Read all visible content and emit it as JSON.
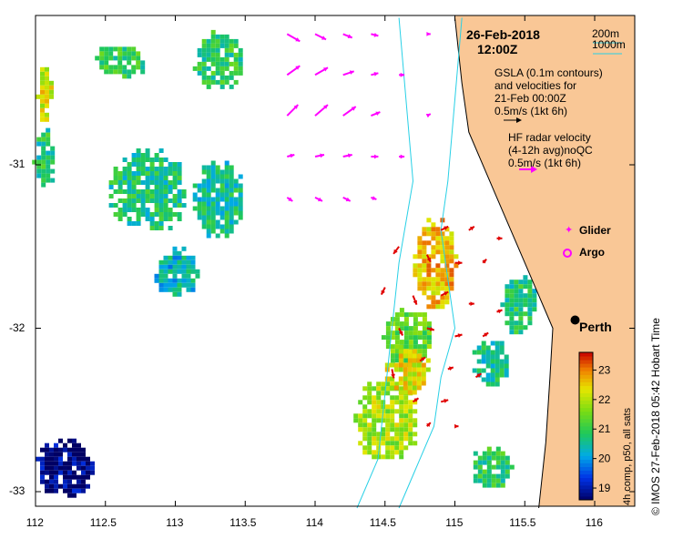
{
  "header": {
    "date": "26-Feb-2018",
    "time": "12:00Z"
  },
  "legend": {
    "contour_200": "200m",
    "contour_1000": "1000m",
    "gsla_line1": "GSLA (0.1m contours)",
    "gsla_line2": "and velocities for",
    "gsla_line3": "21-Feb 00:00Z",
    "gsla_scale": "0.5m/s (1kt 6h)",
    "hf_line1": "HF radar velocity",
    "hf_line2": "(4-12h avg)noQC",
    "hf_scale": "0.5m/s (1kt 6h)",
    "glider": "Glider",
    "argo": "Argo",
    "city": "Perth"
  },
  "colorbar": {
    "title": "4h comp, p50, all sats",
    "ticks": [
      "19",
      "20",
      "21",
      "22",
      "23"
    ],
    "min": 18.6,
    "max": 23.6
  },
  "credit": "© IMOS 27-Feb-2018 05:42 Hobart Time",
  "colors": {
    "land": "#f9c796",
    "bathy": "#28d0e6",
    "gsla_arrow": "#ff00ff",
    "hf_arrow": "#e00000",
    "glider": "#ff00ff"
  },
  "chart_data": {
    "type": "map",
    "xlim": [
      112,
      116.3
    ],
    "ylim": [
      -33.1,
      -30.1
    ],
    "xticks": [
      "112",
      "112.5",
      "113",
      "113.5",
      "114",
      "114.5",
      "115",
      "115.5",
      "116"
    ],
    "yticks": [
      "-31",
      "-32",
      "-33"
    ],
    "sst_patches": [
      {
        "lon": 112.05,
        "lat": -30.55,
        "w": 0.1,
        "h": 0.35,
        "sst": 22.2
      },
      {
        "lon": 112.05,
        "lat": -30.95,
        "w": 0.15,
        "h": 0.35,
        "sst": 20.8
      },
      {
        "lon": 112.6,
        "lat": -30.35,
        "w": 0.35,
        "h": 0.2,
        "sst": 21.0
      },
      {
        "lon": 113.3,
        "lat": -30.35,
        "w": 0.35,
        "h": 0.35,
        "sst": 20.9
      },
      {
        "lon": 112.8,
        "lat": -31.15,
        "w": 0.55,
        "h": 0.5,
        "sst": 20.7
      },
      {
        "lon": 113.3,
        "lat": -31.2,
        "w": 0.35,
        "h": 0.45,
        "sst": 20.6
      },
      {
        "lon": 113.0,
        "lat": -31.65,
        "w": 0.3,
        "h": 0.3,
        "sst": 20.3
      },
      {
        "lon": 114.85,
        "lat": -31.6,
        "w": 0.3,
        "h": 0.55,
        "sst": 22.6
      },
      {
        "lon": 114.65,
        "lat": -32.05,
        "w": 0.35,
        "h": 0.35,
        "sst": 21.4
      },
      {
        "lon": 114.5,
        "lat": -32.55,
        "w": 0.45,
        "h": 0.5,
        "sst": 21.9
      },
      {
        "lon": 114.65,
        "lat": -32.25,
        "w": 0.3,
        "h": 0.3,
        "sst": 22.3
      },
      {
        "lon": 115.45,
        "lat": -31.85,
        "w": 0.25,
        "h": 0.35,
        "sst": 20.8
      },
      {
        "lon": 115.25,
        "lat": -32.2,
        "w": 0.25,
        "h": 0.3,
        "sst": 20.6
      },
      {
        "lon": 115.25,
        "lat": -32.85,
        "w": 0.3,
        "h": 0.25,
        "sst": 20.9
      },
      {
        "lon": 112.2,
        "lat": -32.85,
        "w": 0.4,
        "h": 0.35,
        "sst": 18.7
      }
    ],
    "gsla_vectors": [
      {
        "lon": 113.8,
        "lat": -30.2,
        "u": 0.35,
        "v": -0.2
      },
      {
        "lon": 114.0,
        "lat": -30.2,
        "u": 0.3,
        "v": -0.15
      },
      {
        "lon": 114.2,
        "lat": -30.2,
        "u": 0.25,
        "v": -0.1
      },
      {
        "lon": 114.4,
        "lat": -30.2,
        "u": 0.2,
        "v": -0.05
      },
      {
        "lon": 113.8,
        "lat": -30.45,
        "u": 0.35,
        "v": 0.25
      },
      {
        "lon": 114.0,
        "lat": -30.45,
        "u": 0.35,
        "v": 0.2
      },
      {
        "lon": 114.2,
        "lat": -30.45,
        "u": 0.3,
        "v": 0.1
      },
      {
        "lon": 114.4,
        "lat": -30.45,
        "u": 0.2,
        "v": 0.05
      },
      {
        "lon": 113.8,
        "lat": -30.7,
        "u": 0.3,
        "v": 0.3
      },
      {
        "lon": 114.0,
        "lat": -30.7,
        "u": 0.35,
        "v": 0.3
      },
      {
        "lon": 114.2,
        "lat": -30.7,
        "u": 0.35,
        "v": 0.25
      },
      {
        "lon": 114.4,
        "lat": -30.7,
        "u": 0.25,
        "v": 0.1
      },
      {
        "lon": 113.8,
        "lat": -30.95,
        "u": 0.2,
        "v": 0.05
      },
      {
        "lon": 114.0,
        "lat": -30.95,
        "u": 0.25,
        "v": 0.05
      },
      {
        "lon": 114.2,
        "lat": -30.95,
        "u": 0.25,
        "v": 0.05
      },
      {
        "lon": 114.4,
        "lat": -30.95,
        "u": 0.2,
        "v": 0.0
      },
      {
        "lon": 113.8,
        "lat": -31.2,
        "u": 0.15,
        "v": -0.1
      },
      {
        "lon": 114.0,
        "lat": -31.2,
        "u": 0.2,
        "v": -0.1
      },
      {
        "lon": 114.2,
        "lat": -31.2,
        "u": 0.2,
        "v": -0.1
      },
      {
        "lon": 114.4,
        "lat": -31.2,
        "u": 0.15,
        "v": -0.05
      },
      {
        "lon": 114.6,
        "lat": -30.45,
        "u": 0.15,
        "v": 0.0
      },
      {
        "lon": 114.6,
        "lat": -30.95,
        "u": 0.15,
        "v": 0.0
      },
      {
        "lon": 114.8,
        "lat": -30.2,
        "u": 0.1,
        "v": 0.0
      },
      {
        "lon": 114.8,
        "lat": -30.7,
        "u": 0.1,
        "v": 0.05
      }
    ],
    "hf_vectors": [
      {
        "lon": 114.9,
        "lat": -31.4,
        "u": 0.2,
        "v": 0.1
      },
      {
        "lon": 115.1,
        "lat": -31.4,
        "u": 0.15,
        "v": 0.1
      },
      {
        "lon": 115.3,
        "lat": -31.45,
        "u": 0.15,
        "v": 0.0
      },
      {
        "lon": 114.6,
        "lat": -31.5,
        "u": -0.15,
        "v": -0.2
      },
      {
        "lon": 114.8,
        "lat": -31.55,
        "u": 0.1,
        "v": -0.2
      },
      {
        "lon": 115.0,
        "lat": -31.6,
        "u": 0.2,
        "v": 0.0
      },
      {
        "lon": 115.2,
        "lat": -31.6,
        "u": 0.1,
        "v": 0.1
      },
      {
        "lon": 114.5,
        "lat": -31.75,
        "u": -0.1,
        "v": -0.2
      },
      {
        "lon": 114.7,
        "lat": -31.8,
        "u": 0.1,
        "v": -0.25
      },
      {
        "lon": 114.9,
        "lat": -31.8,
        "u": 0.2,
        "v": 0.1
      },
      {
        "lon": 115.1,
        "lat": -31.85,
        "u": 0.15,
        "v": 0.0
      },
      {
        "lon": 115.3,
        "lat": -31.9,
        "u": 0.15,
        "v": 0.05
      },
      {
        "lon": 114.6,
        "lat": -32.0,
        "u": 0.1,
        "v": -0.2
      },
      {
        "lon": 114.8,
        "lat": -32.0,
        "u": 0.2,
        "v": -0.05
      },
      {
        "lon": 115.0,
        "lat": -32.05,
        "u": 0.2,
        "v": 0.05
      },
      {
        "lon": 115.2,
        "lat": -32.05,
        "u": 0.15,
        "v": 0.1
      },
      {
        "lon": 114.55,
        "lat": -32.25,
        "u": 0.05,
        "v": -0.25
      },
      {
        "lon": 114.75,
        "lat": -32.2,
        "u": 0.15,
        "v": 0.1
      },
      {
        "lon": 114.95,
        "lat": -32.25,
        "u": 0.15,
        "v": 0.05
      },
      {
        "lon": 115.15,
        "lat": -32.3,
        "u": 0.15,
        "v": 0.1
      },
      {
        "lon": 114.7,
        "lat": -32.45,
        "u": 0.15,
        "v": 0.1
      },
      {
        "lon": 114.9,
        "lat": -32.45,
        "u": 0.2,
        "v": 0.05
      },
      {
        "lon": 114.8,
        "lat": -32.6,
        "u": 0.1,
        "v": 0.1
      },
      {
        "lon": 115.0,
        "lat": -32.6,
        "u": 0.1,
        "v": 0.0
      }
    ],
    "bathy_200m": [
      [
        115.05,
        -30.1
      ],
      [
        115.0,
        -30.6
      ],
      [
        114.95,
        -31.1
      ],
      [
        114.9,
        -31.4
      ],
      [
        114.95,
        -31.7
      ],
      [
        115.0,
        -32.0
      ],
      [
        114.9,
        -32.3
      ],
      [
        114.85,
        -32.6
      ],
      [
        114.7,
        -32.9
      ],
      [
        114.6,
        -33.1
      ]
    ],
    "bathy_1000m": [
      [
        114.6,
        -30.1
      ],
      [
        114.65,
        -30.6
      ],
      [
        114.7,
        -31.1
      ],
      [
        114.6,
        -31.6
      ],
      [
        114.55,
        -32.0
      ],
      [
        114.5,
        -32.4
      ],
      [
        114.45,
        -32.8
      ],
      [
        114.3,
        -33.1
      ]
    ],
    "coast": [
      [
        115.0,
        -30.1
      ],
      [
        115.05,
        -30.5
      ],
      [
        115.1,
        -30.8
      ],
      [
        115.3,
        -31.2
      ],
      [
        115.5,
        -31.6
      ],
      [
        115.7,
        -32.0
      ],
      [
        115.68,
        -32.3
      ],
      [
        115.65,
        -32.7
      ],
      [
        115.6,
        -33.1
      ]
    ],
    "perth": {
      "lon": 115.86,
      "lat": -31.95
    }
  }
}
